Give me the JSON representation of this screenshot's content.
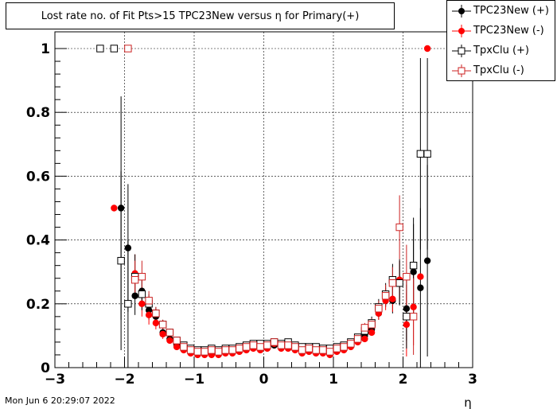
{
  "title": "Lost rate no. of Fit Pts>15 TPC23New versus η for Primary(+)",
  "timestamp": "Mon Jun  6 20:29:07 2022",
  "colors": {
    "black": "#000000",
    "red": "#ff0000",
    "darkred": "#cc2222"
  },
  "chart_data": {
    "type": "scatter",
    "title": "Lost rate no. of Fit Pts>15 TPC23New versus η for Primary(+)",
    "xlabel": "η",
    "ylabel": "",
    "xlim": [
      -3,
      3
    ],
    "ylim": [
      0,
      1.0
    ],
    "x_ticks": [
      "−3",
      "−2",
      "−1",
      "0",
      "1",
      "2",
      "3"
    ],
    "y_ticks": [
      "0",
      "0.2",
      "0.4",
      "0.6",
      "0.8",
      "1"
    ],
    "grid": true,
    "legend_position": "top-right",
    "series": [
      {
        "name": "TPC23New (+)",
        "marker": "filled-circle",
        "color": "#000000",
        "points": [
          {
            "x": -2.05,
            "y": 0.5,
            "err": 0.35
          },
          {
            "x": -1.95,
            "y": 0.375,
            "err": 0.2
          },
          {
            "x": -1.85,
            "y": 0.225,
            "err": 0.06
          },
          {
            "x": -1.75,
            "y": 0.24,
            "err": 0.04
          },
          {
            "x": -1.65,
            "y": 0.18,
            "err": 0.03
          },
          {
            "x": -1.55,
            "y": 0.16,
            "err": 0.02
          },
          {
            "x": -1.45,
            "y": 0.11,
            "err": 0.015
          },
          {
            "x": -1.35,
            "y": 0.09,
            "err": 0.012
          },
          {
            "x": -1.25,
            "y": 0.07
          },
          {
            "x": -1.15,
            "y": 0.06
          },
          {
            "x": -1.05,
            "y": 0.05
          },
          {
            "x": -0.95,
            "y": 0.045
          },
          {
            "x": -0.85,
            "y": 0.045
          },
          {
            "x": -0.75,
            "y": 0.045
          },
          {
            "x": -0.65,
            "y": 0.045
          },
          {
            "x": -0.55,
            "y": 0.05
          },
          {
            "x": -0.45,
            "y": 0.055
          },
          {
            "x": -0.35,
            "y": 0.055
          },
          {
            "x": -0.25,
            "y": 0.06
          },
          {
            "x": -0.15,
            "y": 0.065
          },
          {
            "x": -0.05,
            "y": 0.065
          },
          {
            "x": 0.05,
            "y": 0.065
          },
          {
            "x": 0.15,
            "y": 0.07
          },
          {
            "x": 0.25,
            "y": 0.065
          },
          {
            "x": 0.35,
            "y": 0.065
          },
          {
            "x": 0.45,
            "y": 0.06
          },
          {
            "x": 0.55,
            "y": 0.055
          },
          {
            "x": 0.65,
            "y": 0.055
          },
          {
            "x": 0.75,
            "y": 0.05
          },
          {
            "x": 0.85,
            "y": 0.05
          },
          {
            "x": 0.95,
            "y": 0.05
          },
          {
            "x": 1.05,
            "y": 0.055
          },
          {
            "x": 1.15,
            "y": 0.06
          },
          {
            "x": 1.25,
            "y": 0.07
          },
          {
            "x": 1.35,
            "y": 0.085
          },
          {
            "x": 1.45,
            "y": 0.1,
            "err": 0.012
          },
          {
            "x": 1.55,
            "y": 0.12,
            "err": 0.015
          },
          {
            "x": 1.65,
            "y": 0.17,
            "err": 0.02
          },
          {
            "x": 1.75,
            "y": 0.22,
            "err": 0.03
          },
          {
            "x": 1.85,
            "y": 0.21,
            "err": 0.04
          },
          {
            "x": 1.95,
            "y": 0.27,
            "err": 0.07
          },
          {
            "x": 2.05,
            "y": 0.185,
            "err": 0.1
          },
          {
            "x": 2.15,
            "y": 0.3,
            "err": 0.15
          },
          {
            "x": 2.25,
            "y": 0.25,
            "err": 0.25
          },
          {
            "x": 2.35,
            "y": 0.335,
            "err": 0.3
          }
        ]
      },
      {
        "name": "TPC23New (-)",
        "marker": "filled-circle",
        "color": "#ff0000",
        "points": [
          {
            "x": -2.15,
            "y": 0.5
          },
          {
            "x": -1.85,
            "y": 0.295,
            "err": 0.06
          },
          {
            "x": -1.75,
            "y": 0.2,
            "err": 0.04
          },
          {
            "x": -1.65,
            "y": 0.165,
            "err": 0.03
          },
          {
            "x": -1.55,
            "y": 0.14,
            "err": 0.02
          },
          {
            "x": -1.45,
            "y": 0.105,
            "err": 0.015
          },
          {
            "x": -1.35,
            "y": 0.085
          },
          {
            "x": -1.25,
            "y": 0.065
          },
          {
            "x": -1.15,
            "y": 0.055
          },
          {
            "x": -1.05,
            "y": 0.045
          },
          {
            "x": -0.95,
            "y": 0.04
          },
          {
            "x": -0.85,
            "y": 0.04
          },
          {
            "x": -0.75,
            "y": 0.04
          },
          {
            "x": -0.65,
            "y": 0.04
          },
          {
            "x": -0.55,
            "y": 0.045
          },
          {
            "x": -0.45,
            "y": 0.045
          },
          {
            "x": -0.35,
            "y": 0.05
          },
          {
            "x": -0.25,
            "y": 0.055
          },
          {
            "x": -0.15,
            "y": 0.06
          },
          {
            "x": -0.05,
            "y": 0.055
          },
          {
            "x": 0.05,
            "y": 0.06
          },
          {
            "x": 0.15,
            "y": 0.075
          },
          {
            "x": 0.25,
            "y": 0.06
          },
          {
            "x": 0.35,
            "y": 0.06
          },
          {
            "x": 0.45,
            "y": 0.055
          },
          {
            "x": 0.55,
            "y": 0.045
          },
          {
            "x": 0.65,
            "y": 0.05
          },
          {
            "x": 0.75,
            "y": 0.045
          },
          {
            "x": 0.85,
            "y": 0.045
          },
          {
            "x": 0.95,
            "y": 0.04
          },
          {
            "x": 1.05,
            "y": 0.05
          },
          {
            "x": 1.15,
            "y": 0.055
          },
          {
            "x": 1.25,
            "y": 0.065
          },
          {
            "x": 1.35,
            "y": 0.08
          },
          {
            "x": 1.45,
            "y": 0.09
          },
          {
            "x": 1.55,
            "y": 0.11
          },
          {
            "x": 1.65,
            "y": 0.17,
            "err": 0.02
          },
          {
            "x": 1.75,
            "y": 0.21,
            "err": 0.03
          },
          {
            "x": 1.85,
            "y": 0.215,
            "err": 0.04
          },
          {
            "x": 1.95,
            "y": 0.275,
            "err": 0.06
          },
          {
            "x": 2.05,
            "y": 0.135,
            "err": 0.1
          },
          {
            "x": 2.15,
            "y": 0.19,
            "err": 0.12
          },
          {
            "x": 2.25,
            "y": 0.285
          },
          {
            "x": 2.35,
            "y": 1.0
          }
        ]
      },
      {
        "name": "TpxClu (+)",
        "marker": "open-square",
        "color": "#000000",
        "points": [
          {
            "x": -2.35,
            "y": 1.0
          },
          {
            "x": -2.15,
            "y": 1.0
          },
          {
            "x": -2.05,
            "y": 0.335,
            "err": 0.28
          },
          {
            "x": -1.95,
            "y": 0.2,
            "err": 0.2
          },
          {
            "x": -1.85,
            "y": 0.285,
            "err": 0.07
          },
          {
            "x": -1.75,
            "y": 0.23,
            "err": 0.05
          },
          {
            "x": -1.65,
            "y": 0.2,
            "err": 0.03
          },
          {
            "x": -1.55,
            "y": 0.17,
            "err": 0.02
          },
          {
            "x": -1.45,
            "y": 0.135,
            "err": 0.015
          },
          {
            "x": -1.35,
            "y": 0.11,
            "err": 0.012
          },
          {
            "x": -1.25,
            "y": 0.085
          },
          {
            "x": -1.15,
            "y": 0.07
          },
          {
            "x": -1.05,
            "y": 0.06
          },
          {
            "x": -0.95,
            "y": 0.055
          },
          {
            "x": -0.85,
            "y": 0.055
          },
          {
            "x": -0.75,
            "y": 0.06
          },
          {
            "x": -0.65,
            "y": 0.055
          },
          {
            "x": -0.55,
            "y": 0.06
          },
          {
            "x": -0.45,
            "y": 0.06
          },
          {
            "x": -0.35,
            "y": 0.065
          },
          {
            "x": -0.25,
            "y": 0.07
          },
          {
            "x": -0.15,
            "y": 0.075
          },
          {
            "x": -0.05,
            "y": 0.075
          },
          {
            "x": 0.05,
            "y": 0.075
          },
          {
            "x": 0.15,
            "y": 0.08
          },
          {
            "x": 0.25,
            "y": 0.075
          },
          {
            "x": 0.35,
            "y": 0.08
          },
          {
            "x": 0.45,
            "y": 0.07
          },
          {
            "x": 0.55,
            "y": 0.065
          },
          {
            "x": 0.65,
            "y": 0.065
          },
          {
            "x": 0.75,
            "y": 0.065
          },
          {
            "x": 0.85,
            "y": 0.06
          },
          {
            "x": 0.95,
            "y": 0.06
          },
          {
            "x": 1.05,
            "y": 0.065
          },
          {
            "x": 1.15,
            "y": 0.07
          },
          {
            "x": 1.25,
            "y": 0.08
          },
          {
            "x": 1.35,
            "y": 0.095
          },
          {
            "x": 1.45,
            "y": 0.115,
            "err": 0.015
          },
          {
            "x": 1.55,
            "y": 0.14,
            "err": 0.02
          },
          {
            "x": 1.65,
            "y": 0.19,
            "err": 0.025
          },
          {
            "x": 1.75,
            "y": 0.23,
            "err": 0.035
          },
          {
            "x": 1.85,
            "y": 0.275,
            "err": 0.05
          },
          {
            "x": 1.95,
            "y": 0.265,
            "err": 0.07
          },
          {
            "x": 2.05,
            "y": 0.16,
            "err": 0.1
          },
          {
            "x": 2.15,
            "y": 0.32,
            "err": 0.15
          },
          {
            "x": 2.25,
            "y": 0.67,
            "err": 0.3
          },
          {
            "x": 2.35,
            "y": 0.67,
            "err": 0.3
          }
        ]
      },
      {
        "name": "TpxClu (-)",
        "marker": "open-square",
        "color": "#cc2222",
        "points": [
          {
            "x": -1.95,
            "y": 1.0
          },
          {
            "x": -1.85,
            "y": 0.275,
            "err": 0.06
          },
          {
            "x": -1.75,
            "y": 0.285,
            "err": 0.05
          },
          {
            "x": -1.65,
            "y": 0.21,
            "err": 0.03
          },
          {
            "x": -1.55,
            "y": 0.17,
            "err": 0.02
          },
          {
            "x": -1.45,
            "y": 0.135,
            "err": 0.015
          },
          {
            "x": -1.35,
            "y": 0.11
          },
          {
            "x": -1.25,
            "y": 0.085
          },
          {
            "x": -1.15,
            "y": 0.065
          },
          {
            "x": -1.05,
            "y": 0.055
          },
          {
            "x": -0.95,
            "y": 0.05
          },
          {
            "x": -0.85,
            "y": 0.05
          },
          {
            "x": -0.75,
            "y": 0.055
          },
          {
            "x": -0.65,
            "y": 0.05
          },
          {
            "x": -0.55,
            "y": 0.055
          },
          {
            "x": -0.45,
            "y": 0.055
          },
          {
            "x": -0.35,
            "y": 0.06
          },
          {
            "x": -0.25,
            "y": 0.065
          },
          {
            "x": -0.15,
            "y": 0.07
          },
          {
            "x": -0.05,
            "y": 0.065
          },
          {
            "x": 0.05,
            "y": 0.07
          },
          {
            "x": 0.15,
            "y": 0.08
          },
          {
            "x": 0.25,
            "y": 0.07
          },
          {
            "x": 0.35,
            "y": 0.07
          },
          {
            "x": 0.45,
            "y": 0.065
          },
          {
            "x": 0.55,
            "y": 0.055
          },
          {
            "x": 0.65,
            "y": 0.06
          },
          {
            "x": 0.75,
            "y": 0.055
          },
          {
            "x": 0.85,
            "y": 0.055
          },
          {
            "x": 0.95,
            "y": 0.05
          },
          {
            "x": 1.05,
            "y": 0.06
          },
          {
            "x": 1.15,
            "y": 0.065
          },
          {
            "x": 1.25,
            "y": 0.075
          },
          {
            "x": 1.35,
            "y": 0.09
          },
          {
            "x": 1.45,
            "y": 0.125,
            "err": 0.015
          },
          {
            "x": 1.55,
            "y": 0.135,
            "err": 0.02
          },
          {
            "x": 1.65,
            "y": 0.185,
            "err": 0.025
          },
          {
            "x": 1.75,
            "y": 0.225,
            "err": 0.035
          },
          {
            "x": 1.85,
            "y": 0.265,
            "err": 0.05
          },
          {
            "x": 1.95,
            "y": 0.44,
            "err": 0.1
          },
          {
            "x": 2.05,
            "y": 0.285,
            "err": 0.1
          },
          {
            "x": 2.15,
            "y": 0.16,
            "err": 0.12
          }
        ]
      }
    ]
  }
}
